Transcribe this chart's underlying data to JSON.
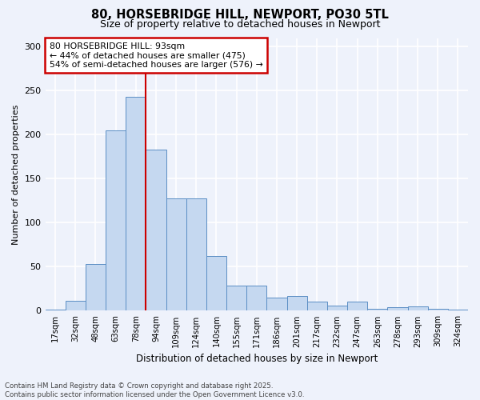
{
  "title": "80, HORSEBRIDGE HILL, NEWPORT, PO30 5TL",
  "subtitle": "Size of property relative to detached houses in Newport",
  "xlabel": "Distribution of detached houses by size in Newport",
  "ylabel": "Number of detached properties",
  "categories": [
    "17sqm",
    "32sqm",
    "48sqm",
    "63sqm",
    "78sqm",
    "94sqm",
    "109sqm",
    "124sqm",
    "140sqm",
    "155sqm",
    "171sqm",
    "186sqm",
    "201sqm",
    "217sqm",
    "232sqm",
    "247sqm",
    "263sqm",
    "278sqm",
    "293sqm",
    "309sqm",
    "324sqm"
  ],
  "values": [
    1,
    11,
    53,
    205,
    243,
    183,
    128,
    128,
    62,
    29,
    29,
    15,
    17,
    10,
    6,
    10,
    2,
    4,
    5,
    2,
    1
  ],
  "bar_color": "#c5d8f0",
  "bar_edge_color": "#5b8ec4",
  "vline_x_index": 4.5,
  "annotation_text_line1": "80 HORSEBRIDGE HILL: 93sqm",
  "annotation_text_line2": "← 44% of detached houses are smaller (475)",
  "annotation_text_line3": "54% of semi-detached houses are larger (576) →",
  "annotation_box_color": "white",
  "annotation_box_edge_color": "#cc0000",
  "vline_color": "#cc0000",
  "ylim": [
    0,
    310
  ],
  "yticks": [
    0,
    50,
    100,
    150,
    200,
    250,
    300
  ],
  "background_color": "#eef2fb",
  "grid_color": "white",
  "footer_line1": "Contains HM Land Registry data © Crown copyright and database right 2025.",
  "footer_line2": "Contains public sector information licensed under the Open Government Licence v3.0."
}
